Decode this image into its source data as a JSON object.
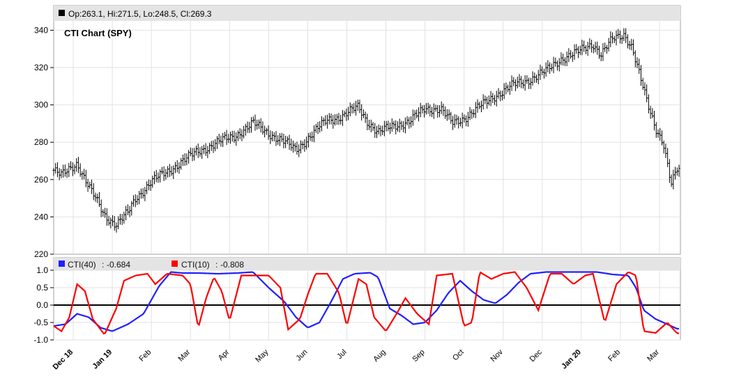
{
  "chart_data": [
    {
      "type": "ohlc",
      "title": "CTI Chart (SPY)",
      "ohlc_readout": "Op:263.1, Hi:271.5, Lo:248.5, Cl:269.3",
      "ohlc_color": "#000000",
      "ylim": [
        220,
        345
      ],
      "yticks": [
        220,
        240,
        260,
        280,
        300,
        320,
        340
      ],
      "grid": true,
      "x_tick_labels": [
        {
          "label": "Dec 18",
          "bold": true
        },
        {
          "label": "Jan 19",
          "bold": true
        },
        {
          "label": "Feb",
          "bold": false
        },
        {
          "label": "Mar",
          "bold": false
        },
        {
          "label": "Apr",
          "bold": false
        },
        {
          "label": "May",
          "bold": false
        },
        {
          "label": "Jun",
          "bold": false
        },
        {
          "label": "Jul",
          "bold": false
        },
        {
          "label": "Aug",
          "bold": false
        },
        {
          "label": "Sep",
          "bold": false
        },
        {
          "label": "Oct",
          "bold": false
        },
        {
          "label": "Nov",
          "bold": false
        },
        {
          "label": "Dec",
          "bold": false
        },
        {
          "label": "Jan 20",
          "bold": true
        },
        {
          "label": "Feb",
          "bold": false
        },
        {
          "label": "Mar",
          "bold": false
        }
      ],
      "months_span": 16,
      "close_anchors": [
        [
          0,
          265
        ],
        [
          0.2,
          262
        ],
        [
          0.6,
          269
        ],
        [
          0.9,
          256
        ],
        [
          1.3,
          241
        ],
        [
          1.6,
          236
        ],
        [
          1.9,
          242
        ],
        [
          2.1,
          250
        ],
        [
          2.5,
          259
        ],
        [
          2.9,
          264
        ],
        [
          3.3,
          270
        ],
        [
          3.7,
          275
        ],
        [
          4.2,
          280
        ],
        [
          4.6,
          283
        ],
        [
          5.1,
          290
        ],
        [
          5.5,
          285
        ],
        [
          5.9,
          280
        ],
        [
          6.2,
          276
        ],
        [
          6.5,
          282
        ],
        [
          7.0,
          292
        ],
        [
          7.4,
          294
        ],
        [
          7.8,
          299
        ],
        [
          8.0,
          292
        ],
        [
          8.3,
          285
        ],
        [
          8.7,
          289
        ],
        [
          9.1,
          291
        ],
        [
          9.5,
          298
        ],
        [
          9.9,
          298
        ],
        [
          10.2,
          290
        ],
        [
          10.5,
          293
        ],
        [
          10.9,
          299
        ],
        [
          11.3,
          305
        ],
        [
          11.7,
          310
        ],
        [
          12.1,
          313
        ],
        [
          12.6,
          318
        ],
        [
          13.0,
          325
        ],
        [
          13.4,
          328
        ],
        [
          13.8,
          333
        ],
        [
          14.0,
          327
        ],
        [
          14.3,
          335
        ],
        [
          14.6,
          338
        ],
        [
          14.8,
          331
        ],
        [
          15.0,
          315
        ],
        [
          15.2,
          300
        ],
        [
          15.4,
          288
        ],
        [
          15.6,
          280
        ],
        [
          15.8,
          257
        ],
        [
          15.95,
          265
        ]
      ]
    },
    {
      "type": "line",
      "ylim": [
        -1.0,
        1.0
      ],
      "yticks": [
        -1.0,
        -0.5,
        0.0,
        0.5,
        1.0
      ],
      "ytick_labels": [
        "-1.0",
        "-0.5",
        "0.0",
        "0.5",
        "1.0"
      ],
      "zero_line": true,
      "series": [
        {
          "name": "CTI(40)",
          "last_value_label": "-0.684",
          "color": "#1f1fff",
          "anchors": [
            [
              0,
              -0.6
            ],
            [
              0.3,
              -0.55
            ],
            [
              0.6,
              -0.25
            ],
            [
              0.9,
              -0.35
            ],
            [
              1.2,
              -0.65
            ],
            [
              1.5,
              -0.75
            ],
            [
              1.9,
              -0.55
            ],
            [
              2.3,
              -0.25
            ],
            [
              2.7,
              0.55
            ],
            [
              3.0,
              0.95
            ],
            [
              3.3,
              0.92
            ],
            [
              3.7,
              0.92
            ],
            [
              4.2,
              0.9
            ],
            [
              4.7,
              0.92
            ],
            [
              5.1,
              0.95
            ],
            [
              5.5,
              0.5
            ],
            [
              5.9,
              0.1
            ],
            [
              6.2,
              -0.35
            ],
            [
              6.5,
              -0.65
            ],
            [
              6.8,
              -0.5
            ],
            [
              7.1,
              0.1
            ],
            [
              7.4,
              0.75
            ],
            [
              7.7,
              0.9
            ],
            [
              8.1,
              0.93
            ],
            [
              8.3,
              0.8
            ],
            [
              8.6,
              -0.1
            ],
            [
              8.9,
              -0.3
            ],
            [
              9.2,
              -0.55
            ],
            [
              9.5,
              -0.5
            ],
            [
              9.8,
              -0.15
            ],
            [
              10.1,
              0.35
            ],
            [
              10.4,
              0.7
            ],
            [
              10.7,
              0.4
            ],
            [
              11.0,
              0.15
            ],
            [
              11.3,
              0.05
            ],
            [
              11.6,
              0.3
            ],
            [
              11.9,
              0.65
            ],
            [
              12.2,
              0.9
            ],
            [
              12.6,
              0.95
            ],
            [
              13.0,
              0.95
            ],
            [
              13.5,
              0.95
            ],
            [
              13.9,
              0.95
            ],
            [
              14.3,
              0.88
            ],
            [
              14.7,
              0.85
            ],
            [
              14.9,
              0.5
            ],
            [
              15.1,
              -0.15
            ],
            [
              15.4,
              -0.4
            ],
            [
              15.7,
              -0.55
            ],
            [
              15.95,
              -0.68
            ]
          ]
        },
        {
          "name": "CTI(10)",
          "last_value_label": "-0.808",
          "color": "#ff0000",
          "anchors": [
            [
              0,
              -0.6
            ],
            [
              0.2,
              -0.75
            ],
            [
              0.4,
              -0.35
            ],
            [
              0.6,
              0.6
            ],
            [
              0.8,
              0.4
            ],
            [
              1.0,
              -0.4
            ],
            [
              1.3,
              -0.85
            ],
            [
              1.6,
              -0.1
            ],
            [
              1.8,
              0.7
            ],
            [
              2.1,
              0.85
            ],
            [
              2.4,
              0.9
            ],
            [
              2.6,
              0.6
            ],
            [
              2.9,
              0.9
            ],
            [
              3.3,
              0.85
            ],
            [
              3.5,
              0.6
            ],
            [
              3.7,
              -0.65
            ],
            [
              3.9,
              0.2
            ],
            [
              4.1,
              0.8
            ],
            [
              4.3,
              0.4
            ],
            [
              4.5,
              -0.45
            ],
            [
              4.8,
              0.85
            ],
            [
              5.1,
              0.85
            ],
            [
              5.5,
              0.85
            ],
            [
              5.8,
              0.5
            ],
            [
              6.0,
              -0.7
            ],
            [
              6.3,
              -0.4
            ],
            [
              6.5,
              0.3
            ],
            [
              6.7,
              0.9
            ],
            [
              7.0,
              0.9
            ],
            [
              7.3,
              0.35
            ],
            [
              7.5,
              -0.6
            ],
            [
              7.8,
              0.75
            ],
            [
              8.0,
              0.6
            ],
            [
              8.2,
              -0.35
            ],
            [
              8.5,
              -0.75
            ],
            [
              8.8,
              -0.2
            ],
            [
              9.0,
              0.2
            ],
            [
              9.3,
              -0.25
            ],
            [
              9.6,
              -0.55
            ],
            [
              9.8,
              0.85
            ],
            [
              10.2,
              0.9
            ],
            [
              10.5,
              -0.6
            ],
            [
              10.7,
              -0.5
            ],
            [
              10.9,
              0.95
            ],
            [
              11.2,
              0.75
            ],
            [
              11.5,
              0.9
            ],
            [
              11.8,
              0.95
            ],
            [
              12.1,
              0.5
            ],
            [
              12.4,
              -0.15
            ],
            [
              12.7,
              0.9
            ],
            [
              13.0,
              0.9
            ],
            [
              13.3,
              0.6
            ],
            [
              13.6,
              0.85
            ],
            [
              13.8,
              0.9
            ],
            [
              14.1,
              -0.5
            ],
            [
              14.4,
              0.6
            ],
            [
              14.7,
              0.95
            ],
            [
              14.9,
              0.85
            ],
            [
              15.1,
              -0.75
            ],
            [
              15.4,
              -0.8
            ],
            [
              15.7,
              -0.5
            ],
            [
              15.95,
              -0.81
            ]
          ]
        }
      ]
    }
  ]
}
